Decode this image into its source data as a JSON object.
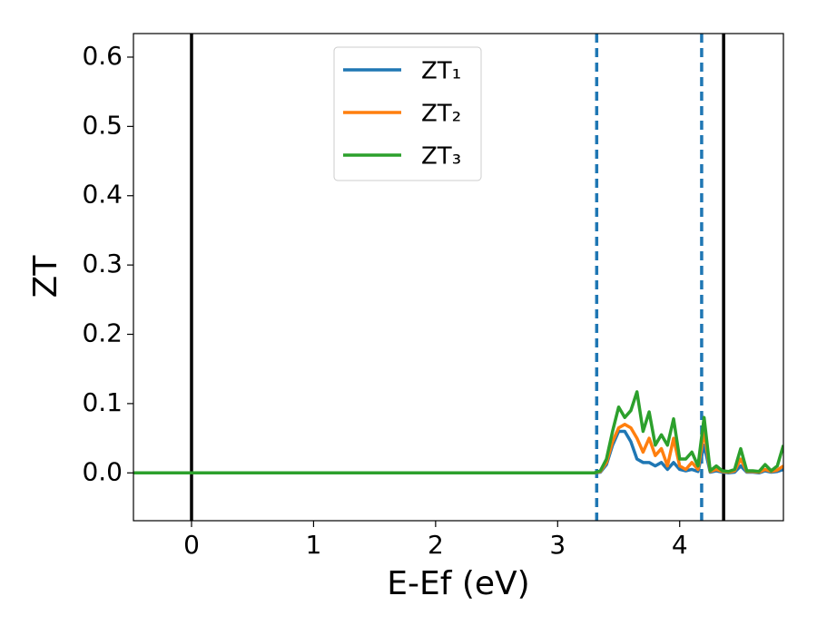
{
  "chart_data": {
    "type": "line",
    "xlabel": "E-Ef (eV)",
    "ylabel": "ZT",
    "x": [
      -0.48,
      3.3,
      3.35,
      3.4,
      3.45,
      3.5,
      3.55,
      3.6,
      3.65,
      3.7,
      3.75,
      3.8,
      3.85,
      3.9,
      3.95,
      4.0,
      4.05,
      4.1,
      4.15,
      4.2,
      4.25,
      4.3,
      4.35,
      4.4,
      4.45,
      4.5,
      4.55,
      4.6,
      4.65,
      4.7,
      4.75,
      4.8,
      4.85
    ],
    "series": [
      {
        "name": "ZT₁",
        "color": "#1f77b4",
        "values": [
          0,
          0,
          0.001,
          0.012,
          0.04,
          0.06,
          0.06,
          0.045,
          0.02,
          0.015,
          0.015,
          0.01,
          0.015,
          0.005,
          0.015,
          0.005,
          0.003,
          0.005,
          0.002,
          0.04,
          0.001,
          0.003,
          0.001,
          0,
          0.001,
          0.01,
          0.001,
          0.001,
          0,
          0.003,
          0.001,
          0.002,
          0.005
        ]
      },
      {
        "name": "ZT₂",
        "color": "#ff7f0e",
        "values": [
          0,
          0,
          0.002,
          0.015,
          0.045,
          0.065,
          0.07,
          0.065,
          0.05,
          0.03,
          0.05,
          0.025,
          0.035,
          0.01,
          0.05,
          0.01,
          0.005,
          0.015,
          0.005,
          0.06,
          0.002,
          0.005,
          0.002,
          0.001,
          0.003,
          0.02,
          0.002,
          0.002,
          0.001,
          0.005,
          0.002,
          0.004,
          0.01
        ]
      },
      {
        "name": "ZT₃",
        "color": "#2ca02c",
        "values": [
          0,
          0,
          0.003,
          0.02,
          0.06,
          0.095,
          0.08,
          0.09,
          0.117,
          0.06,
          0.088,
          0.04,
          0.055,
          0.04,
          0.078,
          0.02,
          0.02,
          0.03,
          0.01,
          0.08,
          0.003,
          0.01,
          0.003,
          0.002,
          0.005,
          0.035,
          0.003,
          0.003,
          0.002,
          0.012,
          0.003,
          0.01,
          0.04
        ]
      }
    ],
    "vlines": [
      {
        "x": 0,
        "color": "#000000",
        "style": "solid"
      },
      {
        "x": 4.36,
        "color": "#000000",
        "style": "solid"
      },
      {
        "x": 3.32,
        "color": "#1f77b4",
        "style": "dashed"
      },
      {
        "x": 4.18,
        "color": "#1f77b4",
        "style": "dashed"
      }
    ],
    "xlim": [
      -0.476,
      4.85
    ],
    "xticks": [
      0,
      1,
      2,
      3,
      4
    ],
    "ylim": [
      -0.069,
      0.634
    ],
    "yticks": [
      {
        "value": 0,
        "label": "0.0"
      },
      0.1,
      0.2,
      0.3,
      0.4,
      0.5,
      0.6
    ],
    "legend": "upper center",
    "grid": false
  }
}
